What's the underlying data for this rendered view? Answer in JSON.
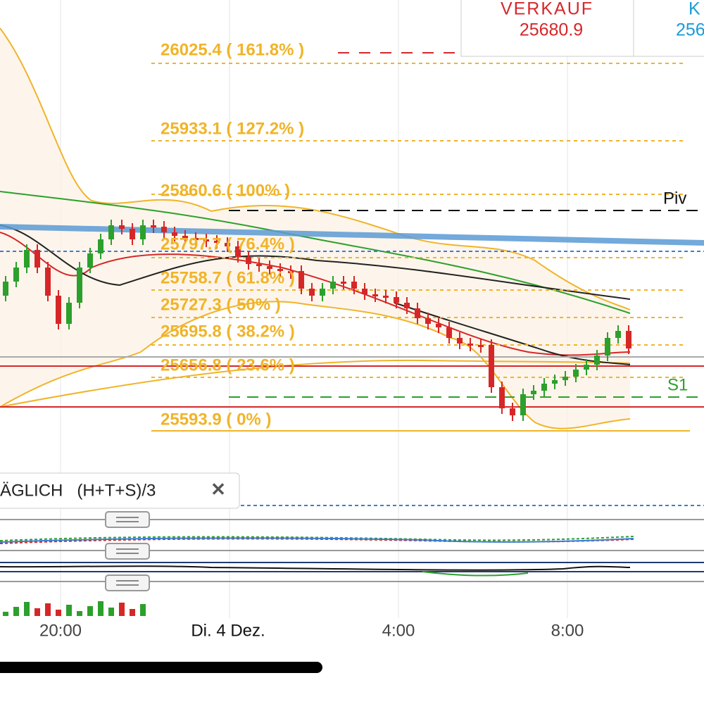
{
  "header": {
    "sell_label": "VERKAUF",
    "sell_price": "25680.9",
    "buy_label": "K",
    "buy_price": "256"
  },
  "fib_levels": [
    "26025.4 ( 161.8% )",
    "25933.1 ( 127.2% )",
    "25860.6 ( 100% )",
    "25797.7 ( 76.4% )",
    "25758.7 ( 61.8% )",
    "25727.3 ( 50% )",
    "25695.8 ( 38.2% )",
    "25656.8 ( 23.6% )",
    "25593.9 ( 0% )"
  ],
  "pivot_labels": [
    "Piv",
    "S1"
  ],
  "indicator_box": {
    "label": "ÄGLICH   (H+T+S)/3",
    "close": "✕"
  },
  "time_axis": [
    "20:00",
    "Di. 4 Dez.",
    "4:00",
    "8:00"
  ]
}
